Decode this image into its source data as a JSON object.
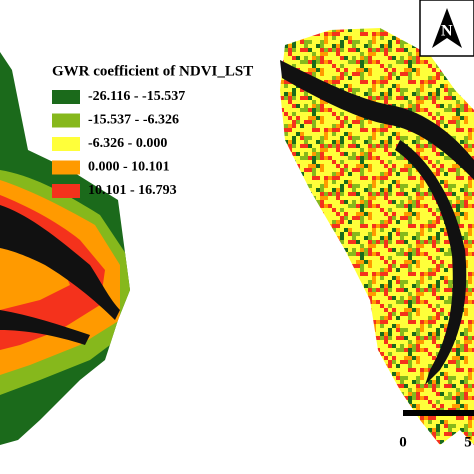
{
  "legend": {
    "title": "GWR coefficient of NDVI_LST",
    "items": [
      {
        "label": "-26.116 - -15.537",
        "color": "#1b6a1b"
      },
      {
        "label": "-15.537 - -6.326",
        "color": "#86b81c"
      },
      {
        "label": "-6.326 - 0.000",
        "color": "#ffff3a"
      },
      {
        "label": "0.000 - 10.101",
        "color": "#ff9a00"
      },
      {
        "label": "10.101 - 16.793",
        "color": "#f4321c"
      }
    ]
  },
  "north_arrow": {
    "label": "N"
  },
  "scale_bar": {
    "labels": [
      "0",
      "5"
    ]
  }
}
